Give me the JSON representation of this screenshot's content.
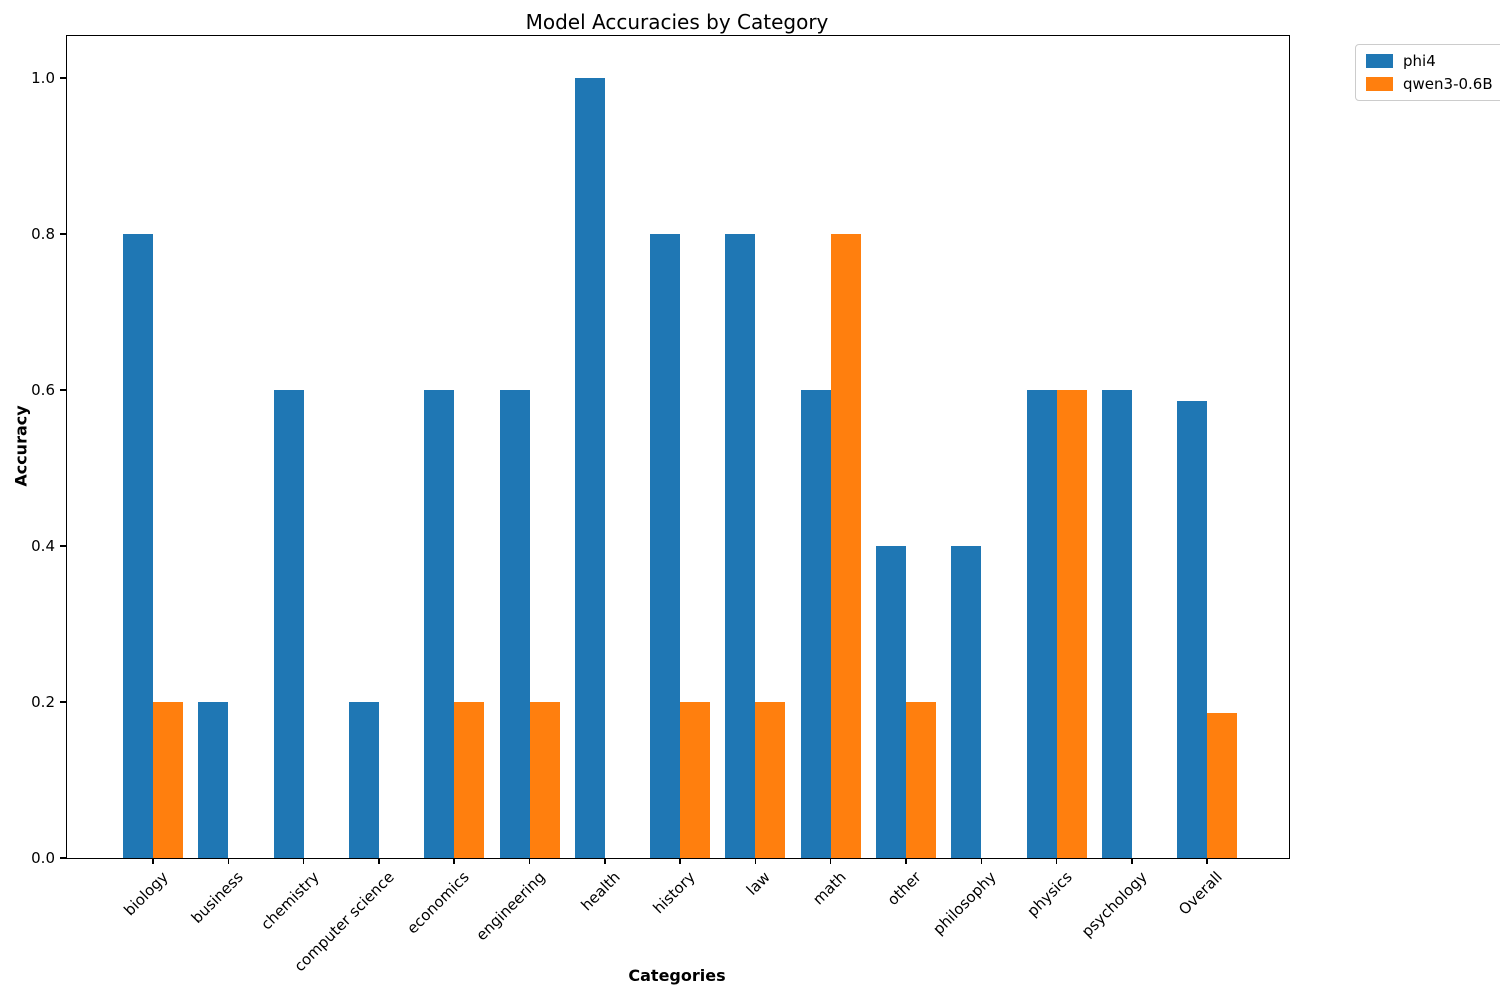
{
  "chart_data": {
    "type": "bar",
    "title": "Model Accuracies by Category",
    "xlabel": "Categories",
    "ylabel": "Accuracy",
    "categories": [
      "biology",
      "business",
      "chemistry",
      "computer science",
      "economics",
      "engineering",
      "health",
      "history",
      "law",
      "math",
      "other",
      "philosophy",
      "physics",
      "psychology",
      "Overall"
    ],
    "series": [
      {
        "name": "phi4",
        "color": "#1f77b4",
        "values": [
          0.8,
          0.2,
          0.6,
          0.2,
          0.6,
          0.6,
          1.0,
          0.8,
          0.8,
          0.6,
          0.4,
          0.4,
          0.6,
          0.6,
          0.5857
        ]
      },
      {
        "name": "qwen3-0.6B",
        "color": "#ff7f0e",
        "values": [
          0.2,
          0.0,
          0.0,
          0.0,
          0.2,
          0.2,
          0.0,
          0.2,
          0.2,
          0.8,
          0.2,
          0.0,
          0.6,
          0.0,
          0.1857
        ]
      }
    ],
    "ylim": [
      0,
      1.05
    ],
    "yticks": [
      "0.0",
      "0.2",
      "0.4",
      "0.6",
      "0.8",
      "1.0"
    ],
    "xtick_rotation_deg": 45,
    "grid": "off",
    "legend_position": "outside-upper-right"
  }
}
